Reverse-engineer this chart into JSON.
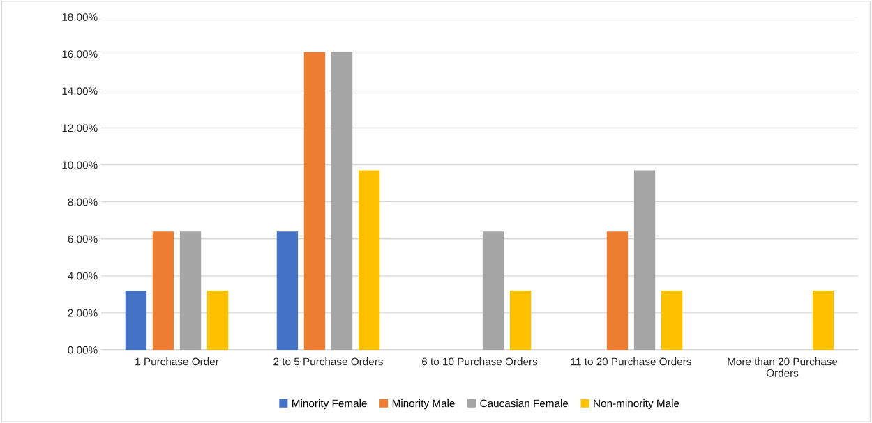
{
  "chart_data": {
    "type": "bar",
    "categories": [
      "1 Purchase Order",
      "2 to 5 Purchase Orders",
      "6 to 10 Purchase Orders",
      "11 to 20 Purchase Orders",
      "More than 20 Purchase Orders"
    ],
    "series": [
      {
        "name": "Minority Female",
        "color": "#4472c4",
        "values": [
          3.2,
          6.4,
          0,
          0,
          0
        ]
      },
      {
        "name": "Minority Male",
        "color": "#ed7d31",
        "values": [
          6.4,
          16.1,
          0,
          6.4,
          0
        ]
      },
      {
        "name": "Caucasian Female",
        "color": "#a5a5a5",
        "values": [
          6.4,
          16.1,
          6.4,
          9.7,
          0
        ]
      },
      {
        "name": "Non-minority Male",
        "color": "#ffc000",
        "values": [
          3.2,
          9.7,
          3.2,
          3.2,
          3.2
        ]
      }
    ],
    "ylim": [
      0,
      18
    ],
    "yticks": [
      {
        "value": 0,
        "label": "0.00%"
      },
      {
        "value": 2,
        "label": "2.00%"
      },
      {
        "value": 4,
        "label": "4.00%"
      },
      {
        "value": 6,
        "label": "6.00%"
      },
      {
        "value": 8,
        "label": "8.00%"
      },
      {
        "value": 10,
        "label": "10.00%"
      },
      {
        "value": 12,
        "label": "12.00%"
      },
      {
        "value": 14,
        "label": "14.00%"
      },
      {
        "value": 16,
        "label": "16.00%"
      },
      {
        "value": 18,
        "label": "18.00%"
      }
    ],
    "grid": "y",
    "legend": "bottom"
  }
}
